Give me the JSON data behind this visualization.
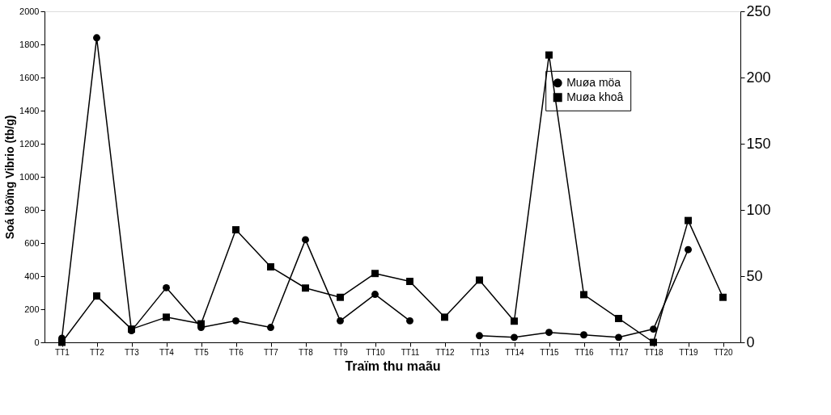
{
  "chart_data": {
    "type": "line",
    "xlabel": "Traïm thu maãu",
    "ylabel": "Soá löôïng Vibrio (tb/g)",
    "categories": [
      "TT1",
      "TT2",
      "TT3",
      "TT4",
      "TT5",
      "TT6",
      "TT7",
      "TT8",
      "TT9",
      "TT10",
      "TT11",
      "TT12",
      "TT13",
      "TT14",
      "TT15",
      "TT16",
      "TT17",
      "TT18",
      "TT19",
      "TT20"
    ],
    "series": [
      {
        "name": "Muøa möa",
        "color": "#000000",
        "marker": "circle",
        "values": [
          25,
          1840,
          70,
          330,
          90,
          130,
          90,
          620,
          130,
          290,
          130,
          null,
          40,
          30,
          60,
          45,
          30,
          80,
          560,
          null
        ]
      },
      {
        "name": "Muøa khoâ",
        "color": "#000000",
        "marker": "square",
        "axis": "y2",
        "values": [
          0,
          35,
          10,
          19,
          14,
          85,
          57,
          41,
          34,
          52,
          46,
          19,
          47,
          16,
          217,
          36,
          18,
          0,
          92,
          34
        ]
      }
    ],
    "ylim": [
      0,
      2000
    ],
    "yticks": [
      0,
      200,
      400,
      600,
      800,
      1000,
      1200,
      1400,
      1600,
      1800,
      2000
    ],
    "y2lim": [
      0,
      250
    ],
    "y2ticks": [
      0,
      50,
      100,
      150,
      200,
      250
    ],
    "grid": false,
    "legend": "top right",
    "line_style": "solid"
  }
}
